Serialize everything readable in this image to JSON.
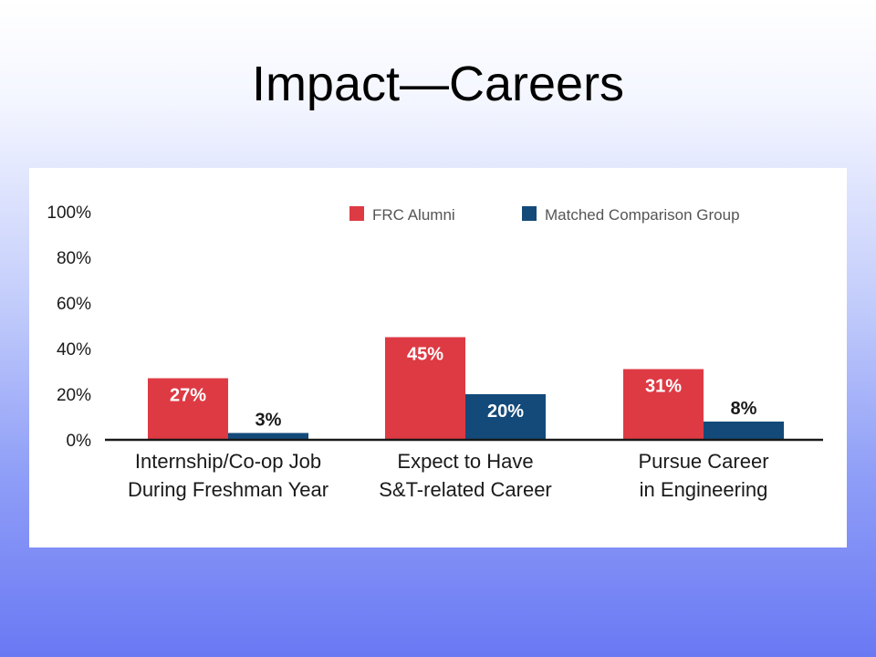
{
  "slide": {
    "title": "Impact—Careers"
  },
  "colors": {
    "series_1": "#de3a44",
    "series_2": "#134a7a",
    "axis": "#1a1a1a"
  },
  "chart_data": {
    "type": "bar",
    "title": "",
    "xlabel": "",
    "ylabel": "",
    "ylim": [
      0,
      100
    ],
    "y_ticks": [
      "0%",
      "20%",
      "40%",
      "60%",
      "80%",
      "100%"
    ],
    "categories": [
      [
        "Internship/Co-op Job",
        "During Freshman Year"
      ],
      [
        "Expect to Have",
        "S&T-related Career"
      ],
      [
        "Pursue Career",
        "in Engineering"
      ]
    ],
    "series": [
      {
        "name": "FRC Alumni",
        "values": [
          27,
          45,
          31
        ],
        "labels": [
          "27%",
          "45%",
          "31%"
        ]
      },
      {
        "name": "Matched Comparison Group",
        "values": [
          3,
          20,
          8
        ],
        "labels": [
          "3%",
          "20%",
          "8%"
        ]
      }
    ],
    "legend": "top-right",
    "grid": false
  }
}
